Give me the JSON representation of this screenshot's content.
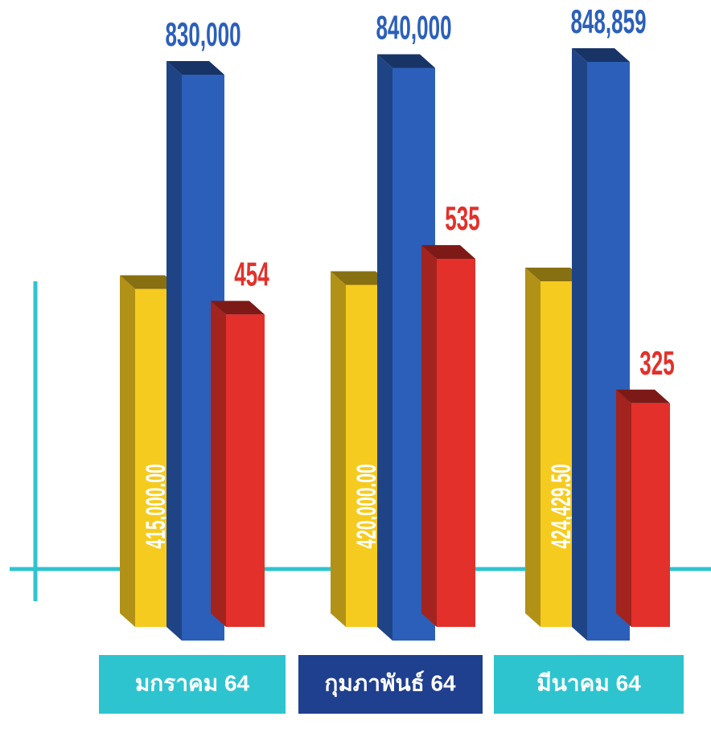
{
  "chart_data": {
    "type": "bar3d",
    "categories": [
      "มกราคม 64",
      "กุมภาพันธ์ 64",
      "มีนาคม 64"
    ],
    "series": [
      {
        "color": "#f6cb1f",
        "values": [
          415000,
          420000,
          424429.5
        ],
        "value_labels": [
          "415,000.00",
          "420,000.00",
          "424,429.50"
        ]
      },
      {
        "color": "#2b5fba",
        "values": [
          830000,
          840000,
          848859
        ],
        "value_labels": [
          "830,000",
          "840,000",
          "848,859"
        ]
      },
      {
        "color": "#e3302a",
        "values": [
          454,
          535,
          325
        ]
      }
    ]
  }
}
